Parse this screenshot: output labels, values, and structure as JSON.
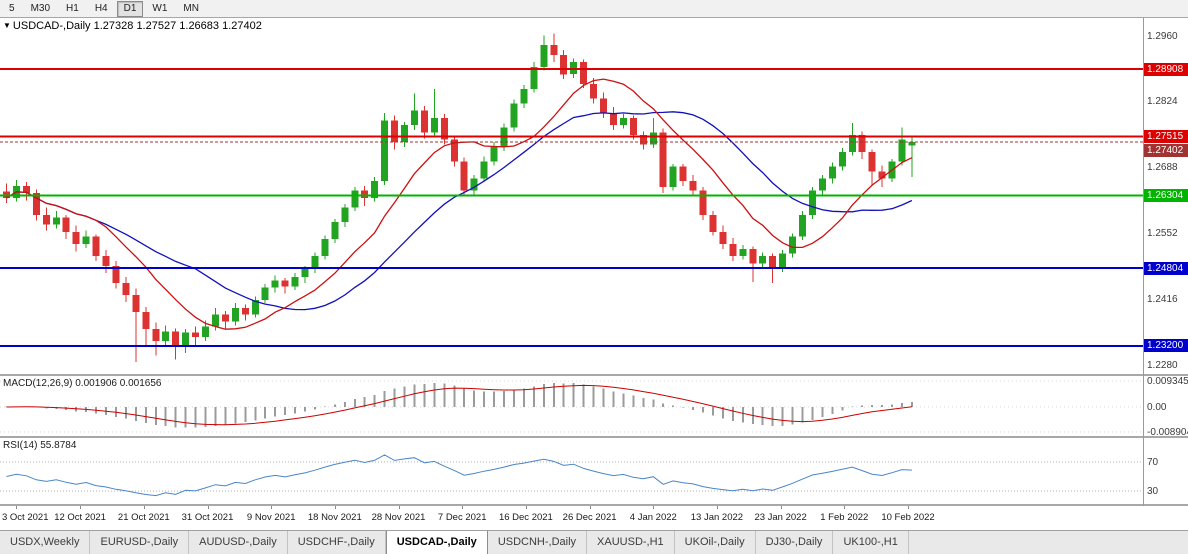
{
  "toolbar": {
    "buttons": [
      {
        "label": "5",
        "active": false
      },
      {
        "label": "M30",
        "active": false
      },
      {
        "label": "H1",
        "active": false
      },
      {
        "label": "H4",
        "active": false
      },
      {
        "label": "D1",
        "active": true
      },
      {
        "label": "W1",
        "active": false
      },
      {
        "label": "MN",
        "active": false
      }
    ]
  },
  "chart_data": {
    "type": "candlestick",
    "title": {
      "collapse_icon": "▼",
      "symbol": "USDCAD-,Daily",
      "open": "1.27328",
      "high": "1.27527",
      "low": "1.26683",
      "close": "1.27402"
    },
    "ylim": [
      1.2262,
      1.2996
    ],
    "colors": {
      "up": "#22a422",
      "down": "#dc3232",
      "ma_fast": "#cc1111",
      "ma_slow": "#1111bb",
      "rsi_line": "#4a86c8",
      "macd_hist": "#9b9b9b",
      "macd_signal": "#cc0000"
    },
    "price_ticks": [
      {
        "value": 1.296,
        "label": "1.2960"
      },
      {
        "value": 1.2824,
        "label": "1.2824"
      },
      {
        "value": 1.2688,
        "label": "1.2688"
      },
      {
        "value": 1.2552,
        "label": "1.2552"
      },
      {
        "value": 1.2416,
        "label": "1.2416"
      },
      {
        "value": 1.228,
        "label": "1.2280"
      }
    ],
    "levels": [
      {
        "value": 1.28908,
        "label": "1.28908",
        "color": "#dd0000"
      },
      {
        "value": 1.27515,
        "label": "1.27515",
        "color": "#dd0000"
      },
      {
        "value": 1.26304,
        "label": "1.26304",
        "color": "#00b400"
      },
      {
        "value": 1.24804,
        "label": "1.24804",
        "color": "#0000cc"
      },
      {
        "value": 1.232,
        "label": "1.23200",
        "color": "#0000cc"
      }
    ],
    "current_price": {
      "value": 1.27402,
      "label": "1.27402",
      "color": "#a03232"
    },
    "overlays": {
      "fast": {
        "type": "sma",
        "period": 10
      },
      "slow": {
        "type": "sma",
        "period": 20
      }
    },
    "candles": [
      [
        1.2638,
        1.2655,
        1.2615,
        1.2625
      ],
      [
        1.2625,
        1.2662,
        1.2618,
        1.265
      ],
      [
        1.265,
        1.2658,
        1.262,
        1.2635
      ],
      [
        1.2635,
        1.2642,
        1.2578,
        1.259
      ],
      [
        1.259,
        1.2605,
        1.2558,
        1.257
      ],
      [
        1.257,
        1.2598,
        1.2562,
        1.2585
      ],
      [
        1.2585,
        1.259,
        1.254,
        1.2555
      ],
      [
        1.2555,
        1.2568,
        1.2515,
        1.253
      ],
      [
        1.253,
        1.2558,
        1.2522,
        1.2545
      ],
      [
        1.2545,
        1.255,
        1.2495,
        1.2505
      ],
      [
        1.2505,
        1.2518,
        1.247,
        1.2485
      ],
      [
        1.2485,
        1.2495,
        1.2438,
        1.245
      ],
      [
        1.245,
        1.2462,
        1.241,
        1.2425
      ],
      [
        1.2425,
        1.2438,
        1.2287,
        1.239
      ],
      [
        1.239,
        1.24,
        1.2322,
        1.2355
      ],
      [
        1.2355,
        1.2368,
        1.23,
        1.233
      ],
      [
        1.233,
        1.2362,
        1.2318,
        1.235
      ],
      [
        1.235,
        1.2356,
        1.2292,
        1.2318
      ],
      [
        1.2318,
        1.2355,
        1.2305,
        1.2348
      ],
      [
        1.2348,
        1.236,
        1.2322,
        1.2338
      ],
      [
        1.2338,
        1.2372,
        1.233,
        1.236
      ],
      [
        1.236,
        1.2398,
        1.2352,
        1.2385
      ],
      [
        1.2385,
        1.2392,
        1.2355,
        1.237
      ],
      [
        1.237,
        1.2408,
        1.2362,
        1.2398
      ],
      [
        1.2398,
        1.2405,
        1.2372,
        1.2385
      ],
      [
        1.2385,
        1.2422,
        1.2378,
        1.2415
      ],
      [
        1.2415,
        1.2448,
        1.2408,
        1.244
      ],
      [
        1.244,
        1.2465,
        1.243,
        1.2455
      ],
      [
        1.2455,
        1.246,
        1.2428,
        1.2442
      ],
      [
        1.2442,
        1.247,
        1.2435,
        1.2462
      ],
      [
        1.2462,
        1.2485,
        1.245,
        1.2478
      ],
      [
        1.2478,
        1.2512,
        1.247,
        1.2505
      ],
      [
        1.2505,
        1.2548,
        1.2498,
        1.254
      ],
      [
        1.254,
        1.2582,
        1.2532,
        1.2575
      ],
      [
        1.2575,
        1.2612,
        1.2565,
        1.2605
      ],
      [
        1.2605,
        1.2648,
        1.2598,
        1.264
      ],
      [
        1.264,
        1.265,
        1.2608,
        1.2625
      ],
      [
        1.2625,
        1.2668,
        1.2618,
        1.266
      ],
      [
        1.266,
        1.28,
        1.2652,
        1.2785
      ],
      [
        1.2785,
        1.2795,
        1.2725,
        1.274
      ],
      [
        1.274,
        1.2782,
        1.273,
        1.2775
      ],
      [
        1.2775,
        1.284,
        1.2765,
        1.2805
      ],
      [
        1.2805,
        1.2815,
        1.2748,
        1.276
      ],
      [
        1.276,
        1.285,
        1.2752,
        1.279
      ],
      [
        1.279,
        1.2798,
        1.2735,
        1.2745
      ],
      [
        1.2745,
        1.2752,
        1.269,
        1.27
      ],
      [
        1.27,
        1.2708,
        1.2628,
        1.264
      ],
      [
        1.264,
        1.2672,
        1.2632,
        1.2665
      ],
      [
        1.2665,
        1.271,
        1.2658,
        1.27
      ],
      [
        1.27,
        1.274,
        1.2692,
        1.273
      ],
      [
        1.273,
        1.2778,
        1.2722,
        1.277
      ],
      [
        1.277,
        1.2828,
        1.2762,
        1.282
      ],
      [
        1.282,
        1.2858,
        1.281,
        1.285
      ],
      [
        1.285,
        1.2905,
        1.2842,
        1.2895
      ],
      [
        1.2895,
        1.296,
        1.2888,
        1.294
      ],
      [
        1.294,
        1.2964,
        1.2905,
        1.292
      ],
      [
        1.292,
        1.293,
        1.287,
        1.288
      ],
      [
        1.288,
        1.2912,
        1.2872,
        1.2905
      ],
      [
        1.2905,
        1.291,
        1.2852,
        1.286
      ],
      [
        1.286,
        1.2872,
        1.282,
        1.283
      ],
      [
        1.283,
        1.2842,
        1.279,
        1.28
      ],
      [
        1.28,
        1.2812,
        1.2765,
        1.2775
      ],
      [
        1.2775,
        1.2798,
        1.2768,
        1.279
      ],
      [
        1.279,
        1.2795,
        1.2745,
        1.2755
      ],
      [
        1.2755,
        1.2762,
        1.2725,
        1.2735
      ],
      [
        1.2735,
        1.279,
        1.2728,
        1.276
      ],
      [
        1.276,
        1.2768,
        1.2635,
        1.2648
      ],
      [
        1.2648,
        1.2695,
        1.264,
        1.269
      ],
      [
        1.269,
        1.2695,
        1.265,
        1.266
      ],
      [
        1.266,
        1.2672,
        1.2628,
        1.264
      ],
      [
        1.264,
        1.2648,
        1.258,
        1.259
      ],
      [
        1.259,
        1.2598,
        1.2548,
        1.2555
      ],
      [
        1.2555,
        1.2568,
        1.252,
        1.253
      ],
      [
        1.253,
        1.2542,
        1.2495,
        1.2505
      ],
      [
        1.2505,
        1.2528,
        1.2498,
        1.252
      ],
      [
        1.252,
        1.2525,
        1.2452,
        1.249
      ],
      [
        1.249,
        1.2512,
        1.2482,
        1.2505
      ],
      [
        1.2505,
        1.251,
        1.245,
        1.248
      ],
      [
        1.248,
        1.2518,
        1.2472,
        1.251
      ],
      [
        1.251,
        1.2552,
        1.2502,
        1.2545
      ],
      [
        1.2545,
        1.2598,
        1.2538,
        1.259
      ],
      [
        1.259,
        1.2648,
        1.2582,
        1.264
      ],
      [
        1.264,
        1.2672,
        1.263,
        1.2665
      ],
      [
        1.2665,
        1.2698,
        1.2655,
        1.269
      ],
      [
        1.269,
        1.2728,
        1.2682,
        1.272
      ],
      [
        1.272,
        1.278,
        1.2712,
        1.2755
      ],
      [
        1.2755,
        1.2762,
        1.2705,
        1.272
      ],
      [
        1.272,
        1.2725,
        1.265,
        1.268
      ],
      [
        1.268,
        1.2692,
        1.2648,
        1.2665
      ],
      [
        1.2665,
        1.2705,
        1.2658,
        1.27
      ],
      [
        1.27,
        1.277,
        1.2692,
        1.2745
      ],
      [
        1.27328,
        1.27527,
        1.26683,
        1.27402
      ]
    ],
    "x_axis": {
      "labels": [
        "3 Oct 2021",
        "12 Oct 2021",
        "21 Oct 2021",
        "31 Oct 2021",
        "9 Nov 2021",
        "18 Nov 2021",
        "28 Nov 2021",
        "7 Dec 2021",
        "16 Dec 2021",
        "26 Dec 2021",
        "4 Jan 2022",
        "13 Jan 2022",
        "23 Jan 2022",
        "1 Feb 2022",
        "10 Feb 2022"
      ],
      "bar_positions": [
        1,
        7.4,
        13.8,
        20.2,
        26.6,
        33,
        39.4,
        45.8,
        52.2,
        58.6,
        65,
        71.4,
        77.8,
        84.2,
        90.6
      ]
    },
    "macd": {
      "name": "MACD(12,26,9)",
      "value_text": "0.001906 0.001656",
      "params": [
        12,
        26,
        9
      ],
      "axis_labels": [
        {
          "value": 0.009345,
          "label": "0.009345"
        },
        {
          "value": 0,
          "label": "0.00"
        },
        {
          "value": -0.008904,
          "label": "-0.008904"
        }
      ]
    },
    "rsi": {
      "name": "RSI(14)",
      "value_text": "55.8784",
      "period": 14,
      "axis_labels": [
        {
          "value": 70,
          "label": "70"
        },
        {
          "value": 30,
          "label": "30"
        }
      ]
    }
  },
  "tabs": [
    {
      "label": "USDX,Weekly",
      "active": false
    },
    {
      "label": "EURUSD-,Daily",
      "active": false
    },
    {
      "label": "AUDUSD-,Daily",
      "active": false
    },
    {
      "label": "USDCHF-,Daily",
      "active": false
    },
    {
      "label": "USDCAD-,Daily",
      "active": true
    },
    {
      "label": "USDCNH-,Daily",
      "active": false
    },
    {
      "label": "XAUUSD-,H1",
      "active": false
    },
    {
      "label": "UKOil-,Daily",
      "active": false
    },
    {
      "label": "DJ30-,Daily",
      "active": false
    },
    {
      "label": "UK100-,H1",
      "active": false
    }
  ]
}
